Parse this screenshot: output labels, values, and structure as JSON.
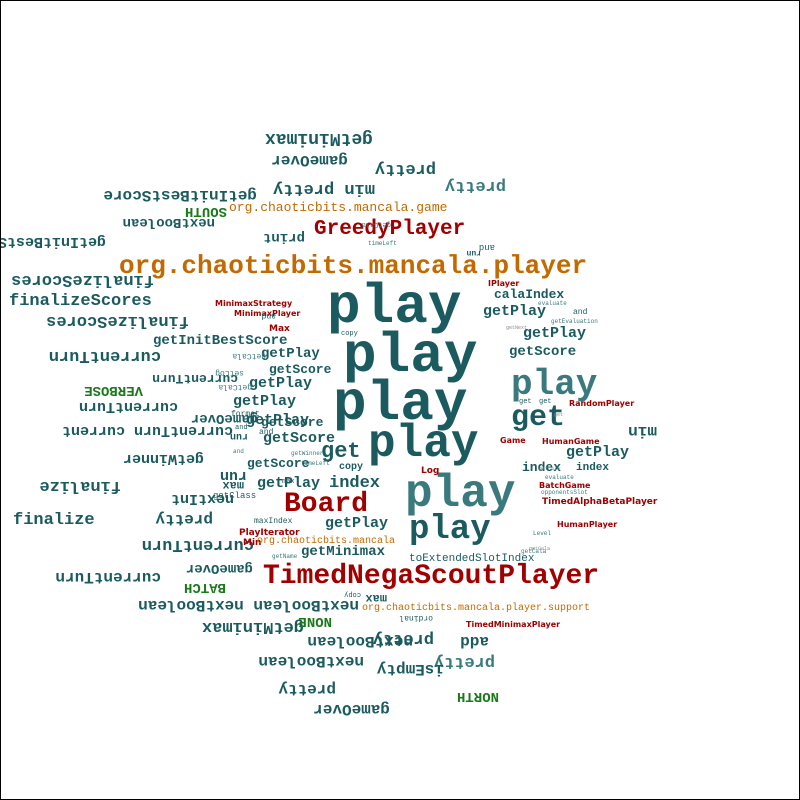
{
  "colors": {
    "teal": "#1b5b5f",
    "teal_light": "#3a7a7e",
    "dark_red": "#a00000",
    "orange": "#c26a00",
    "green": "#1a7a1a",
    "tiny_gray": "#8a8a8a"
  },
  "words": [
    "getMinimax",
    "gameOver",
    "pretty",
    "min pretty",
    "pretty",
    "getInitBestScore",
    "SOUTH",
    "nextBoolean",
    "org.chaoticbits.mancala.game",
    "print",
    "getInitBestSco",
    "GreedyPlayer",
    "org.chaoticbits.mancala.player",
    "finalizeScores",
    "finalizeScores",
    "finalizeScores",
    "currentTurn",
    "getInitBestScore",
    "VERBOSE",
    "currentTurn",
    "currentTurn",
    "currentTurn current",
    "gameOver",
    "getWinner",
    "finalize",
    "run",
    "nextInt",
    "finalize",
    "pretty",
    "currentTurn",
    "currentTurn",
    "BATCH",
    "gameOver",
    "nextBoolean nextBoolean",
    "getMinimax",
    "nextBoolean",
    "nextBoolean",
    "pretty",
    "pretty",
    "isEmpty",
    "gameOver",
    "NONE",
    "NORTH",
    "add",
    "play",
    "play",
    "play",
    "play",
    "play",
    "play",
    "get",
    "get",
    "Board",
    "TimedNegaScoutPlayer",
    "getPlay",
    "getPlay",
    "getPlay",
    "getPlay",
    "getPlay",
    "getPlay",
    "getPlay",
    "getPlay",
    "getPlay",
    "getScore",
    "getScore",
    "getScore",
    "getScore",
    "getScore",
    "getCala",
    "calaIndex",
    "index",
    "index",
    "index",
    "min",
    "max",
    "max",
    "copy",
    "getMinimax",
    "Max",
    "Min",
    "MinimaxStrategy",
    "MinimaxPlayer",
    "IPlayer",
    "RandomPlayer",
    "HumanGame",
    "Game",
    "HumanPlayer",
    "BatchGame",
    "TimedAlphaBetaPlayer",
    "TimedMinimaxPlayer",
    "PlayIterator",
    "Log",
    "org.chaoticbits.mancala",
    "org.chaoticbits.mancala.player.support",
    "toExtendedSlotIndex",
    "maxIndex",
    "getName",
    "opponentsSlot",
    "evaluate",
    "run",
    "run",
    "ordinal",
    "getClass",
    "format",
    "getCala",
    "getCala",
    "setLog",
    "and",
    "and",
    "and",
    "and",
    "get",
    "get",
    "getNext",
    "timeLeft",
    "Level",
    "evaluate",
    "getWinner",
    "copy",
    "and",
    "ordinal",
    "getCala",
    "and",
    "max",
    "get",
    "and",
    "getEvaluation",
    "getCala",
    "timeLeft",
    "getCala",
    "getCala",
    "getCala",
    "getCala",
    "getCala"
  ]
}
